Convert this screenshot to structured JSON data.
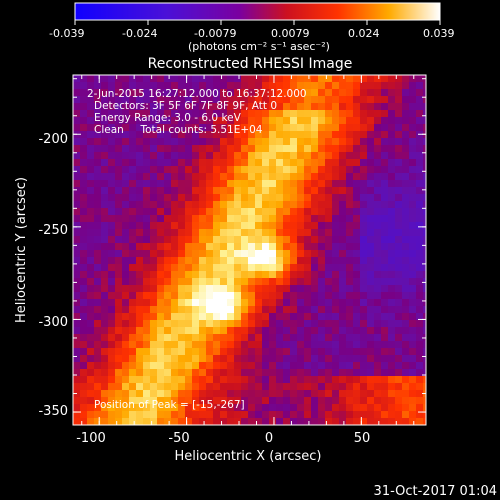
{
  "colorbar": {
    "ticks": [
      "-0.039",
      "-0.024",
      "-0.0079",
      "0.0079",
      "0.024",
      "0.039"
    ],
    "unit": "(photons cm⁻² s⁻¹ asec⁻²)"
  },
  "footer": {
    "timestamp": "31-Oct-2017 01:04"
  },
  "chart_data": {
    "type": "heatmap",
    "title": "Reconstructed RHESSI Image",
    "xlabel": "Heliocentric X (arcsec)",
    "ylabel": "Heliocentric Y (arcsec)",
    "xlim": [
      -115,
      87
    ],
    "ylim": [
      -357,
      -168
    ],
    "xticks": [
      -100,
      -50,
      0,
      50
    ],
    "yticks": [
      -350,
      -300,
      -250,
      -200
    ],
    "value_range": [
      -0.039,
      0.039
    ],
    "peak": [
      -15,
      -267
    ],
    "annotations": [
      "2-Jun-2015 16:27:12.000 to 16:37:12.000",
      "Detectors: 3F 5F 6F 7F 8F 9F, Att 0",
      "Energy Range: 3.0 - 6.0 keV",
      "Clean     Total counts: 5.51E+04",
      "Position of Peak = [-15,-267]"
    ]
  }
}
